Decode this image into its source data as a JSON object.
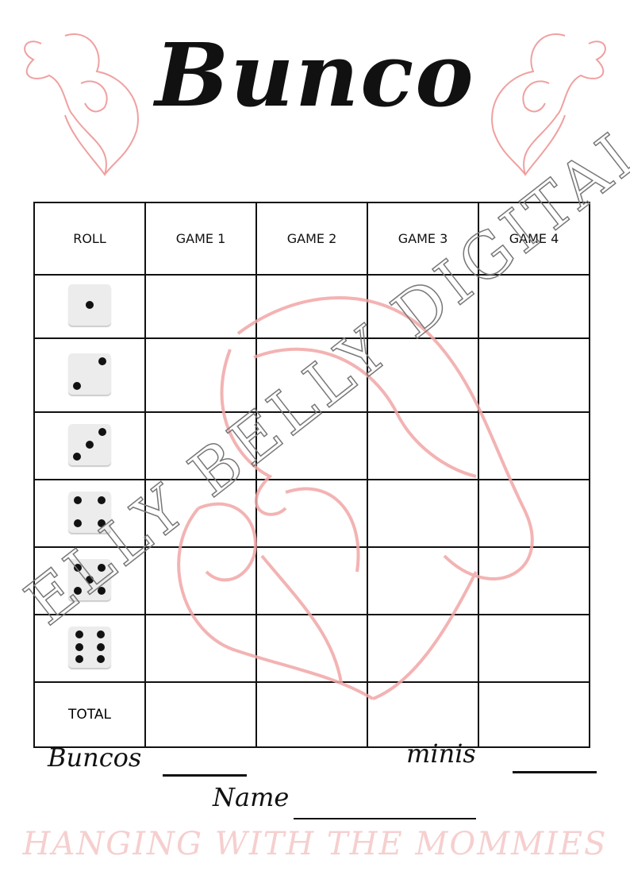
{
  "title": "Bunco",
  "table": {
    "headers": [
      "ROLL",
      "GAME 1",
      "GAME 2",
      "GAME 3",
      "GAME 4"
    ],
    "dice_rows": [
      1,
      2,
      3,
      4,
      5,
      6
    ],
    "total_label": "TOTAL"
  },
  "fields": {
    "buncos_label": "Buncos",
    "minis_label": "minis",
    "name_label": "Name"
  },
  "footer": "HANGING WITH THE MOMMIES",
  "watermark": "ELLY BELLY DIGITAL",
  "colors": {
    "accent_pink": "#f0a0a0",
    "footer_pink": "#f6cfcf",
    "watermark_gray": "#777777"
  }
}
